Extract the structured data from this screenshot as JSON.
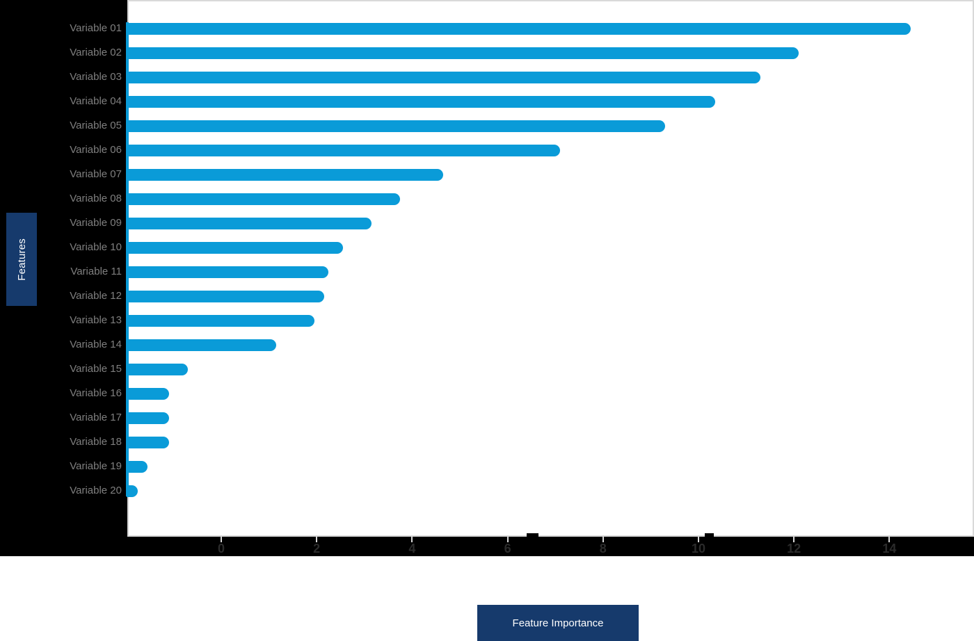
{
  "chart_data": {
    "type": "bar",
    "orientation": "horizontal",
    "title": "",
    "xlabel": "Feature Importance",
    "ylabel": "Features",
    "categories": [
      "Variable 01",
      "Variable 02",
      "Variable 03",
      "Variable 04",
      "Variable 05",
      "Variable 06",
      "Variable 07",
      "Variable 08",
      "Variable 09",
      "Variable 10",
      "Variable 11",
      "Variable 12",
      "Variable 13",
      "Variable 14",
      "Variable 15",
      "Variable 16",
      "Variable 17",
      "Variable 18",
      "Variable 19",
      "Variable 20"
    ],
    "values": [
      14.45,
      12.1,
      11.3,
      10.35,
      9.3,
      7.1,
      4.65,
      3.75,
      3.15,
      2.55,
      2.25,
      2.15,
      1.95,
      1.15,
      -0.7,
      -1.1,
      -1.1,
      -1.1,
      -1.55,
      -1.75
    ],
    "bar_base": -2,
    "x_ticks": [
      0,
      2,
      4,
      6,
      8,
      10,
      12,
      14
    ],
    "xlim": [
      -2,
      15.75
    ],
    "grid": false,
    "legend": null,
    "colors": {
      "bar": "#0a9bd8",
      "axis_label_bg": "#163a6c",
      "axis_label_text": "#ffffff",
      "category_label": "#7f7f7f",
      "tick_label": "#2b2b2b",
      "axis_line": "#d9d9d9",
      "panel_bg": "#000000",
      "plot_bg": "#ffffff"
    }
  }
}
